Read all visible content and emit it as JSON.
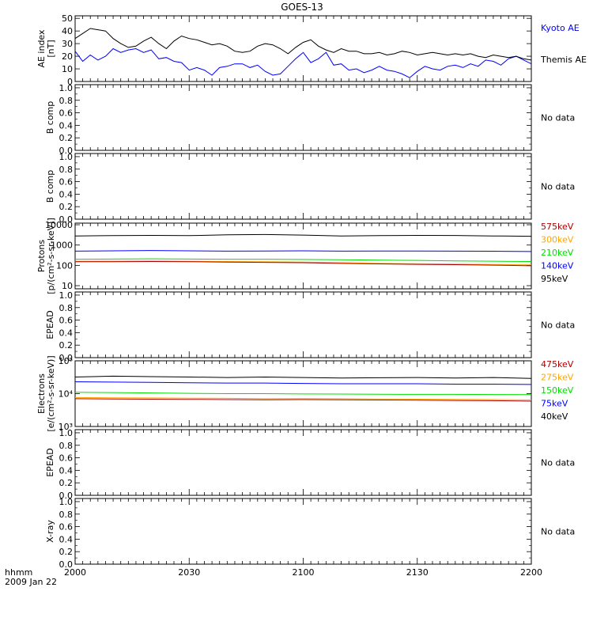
{
  "title": "GOES-13",
  "time_axis": {
    "ticks": [
      "2000",
      "2030",
      "2100",
      "2130",
      "2200"
    ],
    "corner_label_1": "hhmm",
    "corner_label_2": "2009 Jan 22"
  },
  "colors": {
    "black": "#000000",
    "blue": "#0000ff",
    "green": "#00e000",
    "orange": "#ffa500",
    "dark_red": "#b00000"
  },
  "chart_data": [
    {
      "id": "ae",
      "type": "line",
      "ylabel": [
        "AE index",
        "[nT]"
      ],
      "yticks": [
        "0",
        "10",
        "20",
        "30",
        "40",
        "50"
      ],
      "ylim": [
        0,
        52
      ],
      "series": [
        {
          "name": "Kyoto AE",
          "color": "#0000ff",
          "x": [
            0,
            2,
            4,
            6,
            8,
            10,
            12,
            14,
            16,
            18,
            20,
            22,
            24,
            26,
            28,
            30,
            32,
            34,
            36,
            38,
            40,
            42,
            44,
            46,
            48,
            50,
            52,
            54,
            56,
            58,
            60,
            62,
            64,
            66,
            68,
            70,
            72,
            74,
            76,
            78,
            80,
            82,
            84,
            86,
            88,
            90,
            92,
            94,
            96,
            98,
            100,
            102,
            104,
            106,
            108,
            110,
            112,
            114,
            116,
            118,
            120
          ],
          "y": [
            24,
            16,
            21,
            17,
            20,
            26,
            23,
            25,
            26,
            23,
            25,
            18,
            19,
            16,
            15,
            9,
            11,
            9,
            5,
            11,
            12,
            14,
            14,
            11,
            13,
            8,
            5,
            6,
            12,
            18,
            23,
            15,
            18,
            23,
            13,
            14,
            9,
            10,
            7,
            9,
            12,
            9,
            8,
            6,
            3,
            8,
            12,
            10,
            9,
            12,
            13,
            11,
            14,
            12,
            17,
            16,
            13,
            18,
            20,
            17,
            14
          ]
        },
        {
          "name": "Themis AE",
          "color": "#000000",
          "x": [
            0,
            2,
            4,
            6,
            8,
            10,
            12,
            14,
            16,
            18,
            20,
            22,
            24,
            26,
            28,
            30,
            32,
            34,
            36,
            38,
            40,
            42,
            44,
            46,
            48,
            50,
            52,
            54,
            56,
            58,
            60,
            62,
            64,
            66,
            68,
            70,
            72,
            74,
            76,
            78,
            80,
            82,
            84,
            86,
            88,
            90,
            92,
            94,
            96,
            98,
            100,
            102,
            104,
            106,
            108,
            110,
            112,
            114,
            116,
            118,
            120
          ],
          "y": [
            34,
            38,
            42,
            41,
            40,
            34,
            30,
            27,
            28,
            32,
            35,
            30,
            26,
            32,
            36,
            34,
            33,
            31,
            29,
            30,
            28,
            24,
            23,
            24,
            28,
            30,
            29,
            26,
            22,
            27,
            31,
            33,
            28,
            25,
            23,
            26,
            24,
            24,
            22,
            22,
            23,
            21,
            22,
            24,
            23,
            21,
            22,
            23,
            22,
            21,
            22,
            21,
            22,
            20,
            19,
            21,
            20,
            19,
            20,
            18,
            17
          ]
        }
      ]
    },
    {
      "id": "bcomp1",
      "type": "line",
      "ylabel": [
        "B comp"
      ],
      "yticks": [
        "0.0",
        "0.2",
        "0.4",
        "0.6",
        "0.8",
        "1.0"
      ],
      "ylim": [
        0,
        1.05
      ],
      "series": [],
      "note": "No data"
    },
    {
      "id": "bcomp2",
      "type": "line",
      "ylabel": [
        "B comp"
      ],
      "yticks": [
        "0.0",
        "0.2",
        "0.4",
        "0.6",
        "0.8",
        "1.0"
      ],
      "ylim": [
        0,
        1.05
      ],
      "series": [],
      "note": "No data"
    },
    {
      "id": "protons",
      "type": "line",
      "yscale": "log",
      "ylabel": [
        "Protons",
        "[p/(cm²-s-sr-keV)]"
      ],
      "yticks": [
        "10",
        "100",
        "1000",
        "10000"
      ],
      "ylim": [
        7,
        12000
      ],
      "legend": [
        {
          "label": "575keV",
          "color": "#b00000"
        },
        {
          "label": "300keV",
          "color": "#ffa500"
        },
        {
          "label": "210keV",
          "color": "#00e000"
        },
        {
          "label": "140keV",
          "color": "#0000ff"
        },
        {
          "label": "95keV",
          "color": "#000000"
        }
      ],
      "series": [
        {
          "name": "95keV",
          "color": "#000000",
          "x": [
            0,
            10,
            20,
            30,
            40,
            50,
            60,
            70,
            80,
            90,
            100,
            110,
            120
          ],
          "y": [
            2800,
            2900,
            3000,
            2900,
            3200,
            3300,
            3100,
            2800,
            2900,
            3000,
            2950,
            2800,
            2700
          ]
        },
        {
          "name": "140keV",
          "color": "#0000ff",
          "x": [
            0,
            10,
            20,
            30,
            40,
            50,
            60,
            70,
            80,
            90,
            100,
            110,
            120
          ],
          "y": [
            500,
            520,
            540,
            520,
            500,
            510,
            520,
            500,
            510,
            505,
            500,
            495,
            480
          ]
        },
        {
          "name": "210keV",
          "color": "#00e000",
          "x": [
            0,
            10,
            20,
            30,
            40,
            50,
            60,
            70,
            80,
            90,
            100,
            110,
            120
          ],
          "y": [
            200,
            205,
            210,
            205,
            200,
            200,
            195,
            190,
            180,
            175,
            165,
            160,
            155
          ]
        },
        {
          "name": "300keV",
          "color": "#ffa500",
          "x": [
            0,
            10,
            20,
            30,
            40,
            50,
            60,
            70,
            80,
            90,
            100,
            110,
            120
          ],
          "y": [
            160,
            162,
            165,
            160,
            155,
            150,
            145,
            135,
            125,
            120,
            115,
            110,
            105
          ]
        },
        {
          "name": "575keV",
          "color": "#b00000",
          "x": [
            0,
            10,
            20,
            30,
            40,
            50,
            60,
            70,
            80,
            90,
            100,
            110,
            120
          ],
          "y": [
            150,
            152,
            155,
            150,
            145,
            140,
            135,
            125,
            118,
            112,
            108,
            102,
            95
          ]
        }
      ]
    },
    {
      "id": "epead1",
      "type": "line",
      "ylabel": [
        "EPEAD"
      ],
      "yticks": [
        "0.0",
        "0.2",
        "0.4",
        "0.6",
        "0.8",
        "1.0"
      ],
      "ylim": [
        0,
        1.05
      ],
      "series": [],
      "note": "No data"
    },
    {
      "id": "electrons",
      "type": "line",
      "yscale": "log",
      "ylabel": [
        "Electrons",
        "[e/(cm²-s-sr-keV)]"
      ],
      "yticks": [
        "10³",
        "10⁴",
        "10⁵"
      ],
      "ylim": [
        1000,
        100000
      ],
      "legend": [
        {
          "label": "475keV",
          "color": "#b00000"
        },
        {
          "label": "275keV",
          "color": "#ffa500"
        },
        {
          "label": "150keV",
          "color": "#00e000"
        },
        {
          "label": "75keV",
          "color": "#0000ff"
        },
        {
          "label": "40keV",
          "color": "#000000"
        }
      ],
      "series": [
        {
          "name": "40keV",
          "color": "#000000",
          "x": [
            0,
            10,
            20,
            30,
            40,
            50,
            60,
            70,
            80,
            90,
            100,
            110,
            120
          ],
          "y": [
            32000,
            34000,
            33000,
            32000,
            31000,
            32000,
            31000,
            30000,
            30500,
            31000,
            30000,
            31000,
            29000
          ]
        },
        {
          "name": "75keV",
          "color": "#0000ff",
          "x": [
            0,
            10,
            20,
            30,
            40,
            50,
            60,
            70,
            80,
            90,
            100,
            110,
            120
          ],
          "y": [
            23000,
            22500,
            22000,
            21500,
            21000,
            21000,
            20500,
            20000,
            20000,
            20000,
            19500,
            19500,
            19000
          ]
        },
        {
          "name": "150keV",
          "color": "#00e000",
          "x": [
            0,
            10,
            20,
            30,
            40,
            50,
            60,
            70,
            80,
            90,
            100,
            110,
            120
          ],
          "y": [
            11000,
            10800,
            10500,
            10200,
            10000,
            10000,
            9800,
            9700,
            9600,
            9500,
            9500,
            9400,
            9300
          ]
        },
        {
          "name": "275keV",
          "color": "#ffa500",
          "x": [
            0,
            10,
            20,
            30,
            40,
            50,
            60,
            70,
            80,
            90,
            100,
            110,
            120
          ],
          "y": [
            7600,
            7500,
            7400,
            7300,
            7200,
            7000,
            7100,
            7000,
            6900,
            6800,
            6700,
            6600,
            6400
          ]
        },
        {
          "name": "475keV",
          "color": "#b00000",
          "x": [
            0,
            10,
            20,
            30,
            40,
            50,
            60,
            70,
            80,
            90,
            100,
            110,
            120
          ],
          "y": [
            7000,
            6900,
            6800,
            6700,
            6600,
            6500,
            6600,
            6500,
            6400,
            6300,
            6200,
            6100,
            5900
          ]
        }
      ]
    },
    {
      "id": "epead2",
      "type": "line",
      "ylabel": [
        "EPEAD"
      ],
      "yticks": [
        "0.0",
        "0.2",
        "0.4",
        "0.6",
        "0.8",
        "1.0"
      ],
      "ylim": [
        0,
        1.05
      ],
      "series": [],
      "note": "No data"
    },
    {
      "id": "xray",
      "type": "line",
      "ylabel": [
        "X-ray"
      ],
      "yticks": [
        "0.0",
        "0.2",
        "0.4",
        "0.6",
        "0.8",
        "1.0"
      ],
      "ylim": [
        0,
        1.05
      ],
      "series": [],
      "note": "No data"
    }
  ]
}
